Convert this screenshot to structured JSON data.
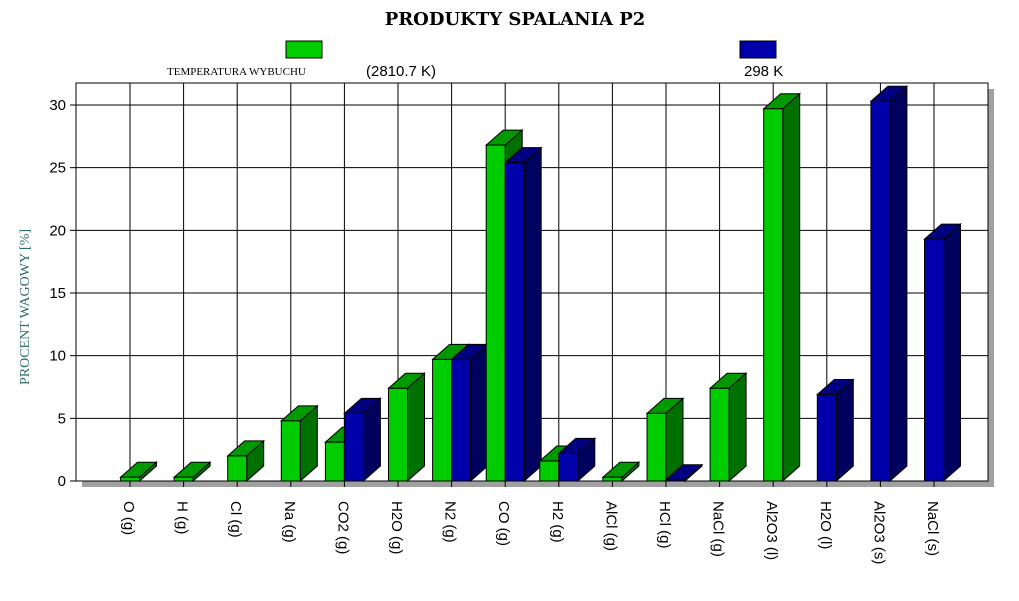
{
  "chart_data": {
    "type": "bar",
    "title": "PRODUKTY SPALANIA P2",
    "ylabel": "PROCENT WAGOWY [%]",
    "xlabel": "",
    "ylim": [
      0,
      30
    ],
    "yticks": [
      "0",
      "5",
      "10",
      "15",
      "20",
      "25",
      "30"
    ],
    "grid": true,
    "legend_placement": "top",
    "categories": [
      "O (g)",
      "H (g)",
      "Cl (g)",
      "Na (g)",
      "CO2 (g)",
      "H2O (g)",
      "N2 (g)",
      "CO (g)",
      "H2 (g)",
      "AlCl (g)",
      "HCl (g)",
      "NaCl (g)",
      "Al2O3 (l)",
      "H2O (l)",
      "Al2O3 (s)",
      "NaCl (s)"
    ],
    "series": [
      {
        "name": "TEMPERATURA WYBUCHU (2810.7 K)",
        "legend_label": "TEMPERATURA WYBUCHU",
        "legend_value": "(2810.7 K)",
        "color": "#00cc00",
        "values": [
          0.3,
          0.3,
          2.0,
          4.8,
          3.1,
          7.4,
          9.7,
          26.8,
          1.6,
          0.3,
          5.4,
          7.4,
          29.7,
          0,
          0,
          0
        ]
      },
      {
        "name": "298 K",
        "legend_label": "",
        "legend_value": "298 K",
        "color": "#0000aa",
        "values": [
          0,
          0,
          0,
          0,
          5.4,
          0,
          9.7,
          25.4,
          2.2,
          0,
          0.1,
          0,
          0,
          6.9,
          30.3,
          19.3
        ]
      }
    ]
  }
}
